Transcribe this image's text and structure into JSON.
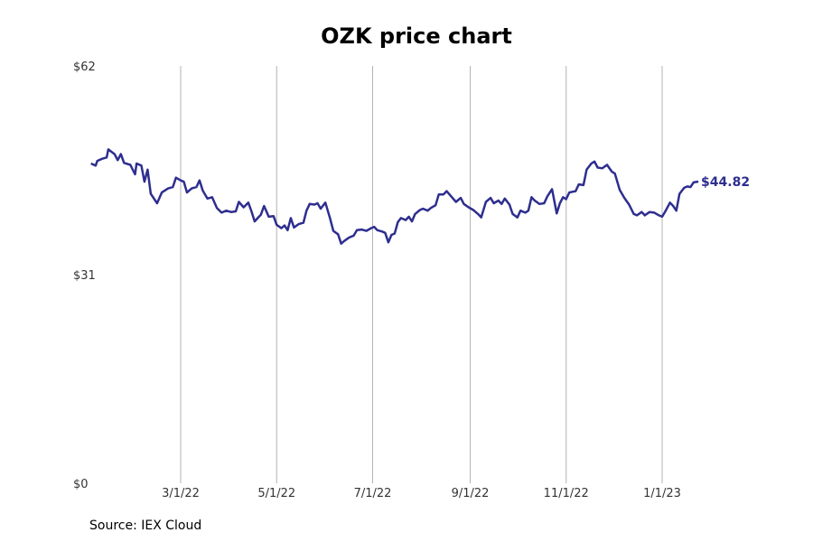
{
  "title": "OZK price chart",
  "source_text": "Source: IEX Cloud",
  "colors": {
    "line": "#2e2e8f",
    "grid": "#b3b3b3",
    "label": "#333333"
  },
  "chart_data": {
    "type": "line",
    "title": "OZK price chart",
    "xlabel": "",
    "ylabel": "",
    "x_range": [
      "2022-01-03",
      "2023-01-24"
    ],
    "ylim": [
      0,
      62
    ],
    "y_ticks": [
      0,
      31,
      62
    ],
    "y_tick_labels": [
      "$0",
      "$31",
      "$62"
    ],
    "x_ticks": [
      "2022-03-01",
      "2022-05-01",
      "2022-07-01",
      "2022-09-01",
      "2022-11-01",
      "2023-01-01"
    ],
    "x_tick_labels": [
      "3/1/22",
      "5/1/22",
      "7/1/22",
      "9/1/22",
      "11/1/22",
      "1/1/23"
    ],
    "grid": "vertical",
    "last_value_label": "$44.82",
    "series": [
      {
        "values": [
          [
            "2022-01-03",
            47.5
          ],
          [
            "2022-01-06",
            47.2
          ],
          [
            "2022-01-07",
            47.9
          ],
          [
            "2022-01-10",
            48.2
          ],
          [
            "2022-01-13",
            48.4
          ],
          [
            "2022-01-14",
            49.6
          ],
          [
            "2022-01-18",
            48.9
          ],
          [
            "2022-01-20",
            48.0
          ],
          [
            "2022-01-22",
            48.9
          ],
          [
            "2022-01-24",
            47.6
          ],
          [
            "2022-01-28",
            47.3
          ],
          [
            "2022-01-31",
            45.9
          ],
          [
            "2022-02-01",
            47.5
          ],
          [
            "2022-02-04",
            47.2
          ],
          [
            "2022-02-06",
            44.8
          ],
          [
            "2022-02-08",
            46.6
          ],
          [
            "2022-02-10",
            43.0
          ],
          [
            "2022-02-14",
            41.6
          ],
          [
            "2022-02-17",
            43.2
          ],
          [
            "2022-02-21",
            43.8
          ],
          [
            "2022-02-24",
            44.0
          ],
          [
            "2022-02-26",
            45.4
          ],
          [
            "2022-03-01",
            45.0
          ],
          [
            "2022-03-03",
            44.8
          ],
          [
            "2022-03-05",
            43.2
          ],
          [
            "2022-03-08",
            43.8
          ],
          [
            "2022-03-11",
            44.0
          ],
          [
            "2022-03-13",
            45.0
          ],
          [
            "2022-03-15",
            43.5
          ],
          [
            "2022-03-18",
            42.3
          ],
          [
            "2022-03-21",
            42.5
          ],
          [
            "2022-03-24",
            40.9
          ],
          [
            "2022-03-27",
            40.2
          ],
          [
            "2022-03-30",
            40.5
          ],
          [
            "2022-04-02",
            40.3
          ],
          [
            "2022-04-05",
            40.4
          ],
          [
            "2022-04-07",
            41.8
          ],
          [
            "2022-04-10",
            41.0
          ],
          [
            "2022-04-13",
            41.7
          ],
          [
            "2022-04-15",
            40.4
          ],
          [
            "2022-04-17",
            38.9
          ],
          [
            "2022-04-19",
            39.4
          ],
          [
            "2022-04-21",
            39.9
          ],
          [
            "2022-04-23",
            41.2
          ],
          [
            "2022-04-26",
            39.6
          ],
          [
            "2022-04-29",
            39.7
          ],
          [
            "2022-05-01",
            38.4
          ],
          [
            "2022-05-04",
            37.9
          ],
          [
            "2022-05-06",
            38.3
          ],
          [
            "2022-05-08",
            37.6
          ],
          [
            "2022-05-10",
            39.4
          ],
          [
            "2022-05-12",
            38.0
          ],
          [
            "2022-05-15",
            38.5
          ],
          [
            "2022-05-18",
            38.7
          ],
          [
            "2022-05-20",
            40.5
          ],
          [
            "2022-05-22",
            41.5
          ],
          [
            "2022-05-25",
            41.4
          ],
          [
            "2022-05-27",
            41.6
          ],
          [
            "2022-05-29",
            40.8
          ],
          [
            "2022-06-01",
            41.7
          ],
          [
            "2022-06-04",
            39.3
          ],
          [
            "2022-06-06",
            37.5
          ],
          [
            "2022-06-09",
            37.0
          ],
          [
            "2022-06-11",
            35.6
          ],
          [
            "2022-06-13",
            36.0
          ],
          [
            "2022-06-16",
            36.5
          ],
          [
            "2022-06-19",
            36.8
          ],
          [
            "2022-06-21",
            37.6
          ],
          [
            "2022-06-24",
            37.7
          ],
          [
            "2022-06-27",
            37.5
          ],
          [
            "2022-06-30",
            37.9
          ],
          [
            "2022-07-02",
            38.1
          ],
          [
            "2022-07-04",
            37.6
          ],
          [
            "2022-07-07",
            37.4
          ],
          [
            "2022-07-09",
            37.2
          ],
          [
            "2022-07-11",
            35.8
          ],
          [
            "2022-07-13",
            36.9
          ],
          [
            "2022-07-15",
            37.1
          ],
          [
            "2022-07-17",
            38.8
          ],
          [
            "2022-07-19",
            39.4
          ],
          [
            "2022-07-22",
            39.1
          ],
          [
            "2022-07-24",
            39.6
          ],
          [
            "2022-07-26",
            38.9
          ],
          [
            "2022-07-28",
            40.0
          ],
          [
            "2022-07-31",
            40.6
          ],
          [
            "2022-08-02",
            40.8
          ],
          [
            "2022-08-05",
            40.5
          ],
          [
            "2022-08-07",
            40.9
          ],
          [
            "2022-08-10",
            41.3
          ],
          [
            "2022-08-12",
            42.9
          ],
          [
            "2022-08-15",
            42.9
          ],
          [
            "2022-08-17",
            43.4
          ],
          [
            "2022-08-20",
            42.6
          ],
          [
            "2022-08-23",
            41.8
          ],
          [
            "2022-08-26",
            42.4
          ],
          [
            "2022-08-28",
            41.5
          ],
          [
            "2022-08-31",
            41.0
          ],
          [
            "2022-09-03",
            40.6
          ],
          [
            "2022-09-06",
            40.0
          ],
          [
            "2022-09-08",
            39.5
          ],
          [
            "2022-09-11",
            41.8
          ],
          [
            "2022-09-14",
            42.4
          ],
          [
            "2022-09-16",
            41.6
          ],
          [
            "2022-09-19",
            42.0
          ],
          [
            "2022-09-21",
            41.5
          ],
          [
            "2022-09-23",
            42.3
          ],
          [
            "2022-09-26",
            41.4
          ],
          [
            "2022-09-28",
            40.0
          ],
          [
            "2022-10-01",
            39.5
          ],
          [
            "2022-10-03",
            40.5
          ],
          [
            "2022-10-06",
            40.2
          ],
          [
            "2022-10-08",
            40.5
          ],
          [
            "2022-10-10",
            42.5
          ],
          [
            "2022-10-12",
            42.0
          ],
          [
            "2022-10-15",
            41.5
          ],
          [
            "2022-10-18",
            41.6
          ],
          [
            "2022-10-20",
            42.6
          ],
          [
            "2022-10-23",
            43.7
          ],
          [
            "2022-10-26",
            40.1
          ],
          [
            "2022-10-28",
            41.6
          ],
          [
            "2022-10-30",
            42.5
          ],
          [
            "2022-11-01",
            42.2
          ],
          [
            "2022-11-03",
            43.2
          ],
          [
            "2022-11-05",
            43.3
          ],
          [
            "2022-11-07",
            43.4
          ],
          [
            "2022-11-09",
            44.4
          ],
          [
            "2022-11-12",
            44.3
          ],
          [
            "2022-11-14",
            46.6
          ],
          [
            "2022-11-17",
            47.5
          ],
          [
            "2022-11-19",
            47.8
          ],
          [
            "2022-11-21",
            46.9
          ],
          [
            "2022-11-24",
            46.8
          ],
          [
            "2022-11-27",
            47.3
          ],
          [
            "2022-11-30",
            46.3
          ],
          [
            "2022-12-02",
            46.0
          ],
          [
            "2022-12-05",
            43.6
          ],
          [
            "2022-12-08",
            42.4
          ],
          [
            "2022-12-11",
            41.4
          ],
          [
            "2022-12-14",
            40.0
          ],
          [
            "2022-12-16",
            39.8
          ],
          [
            "2022-12-19",
            40.3
          ],
          [
            "2022-12-21",
            39.8
          ],
          [
            "2022-12-24",
            40.3
          ],
          [
            "2022-12-27",
            40.2
          ],
          [
            "2022-12-30",
            39.8
          ],
          [
            "2023-01-01",
            39.6
          ],
          [
            "2023-01-03",
            40.4
          ],
          [
            "2023-01-06",
            41.7
          ],
          [
            "2023-01-08",
            41.2
          ],
          [
            "2023-01-10",
            40.5
          ],
          [
            "2023-01-12",
            43.0
          ],
          [
            "2023-01-15",
            43.9
          ],
          [
            "2023-01-17",
            44.1
          ],
          [
            "2023-01-19",
            44.0
          ],
          [
            "2023-01-21",
            44.7
          ],
          [
            "2023-01-24",
            44.82
          ]
        ]
      }
    ]
  }
}
